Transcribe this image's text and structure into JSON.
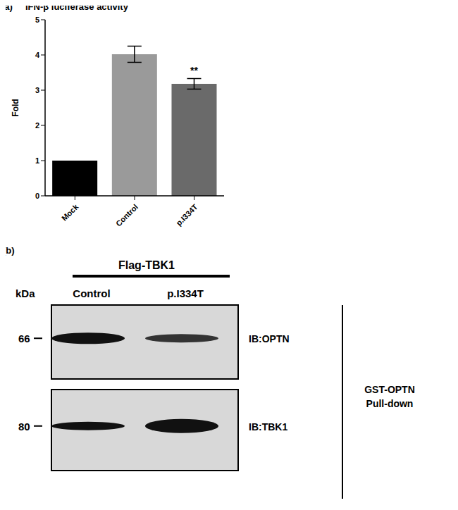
{
  "chart_data": {
    "type": "bar",
    "title": "IFN-β luciferase activity",
    "y_label": "Fold",
    "categories": [
      "Mock",
      "Control",
      "p.I334T"
    ],
    "values": [
      1,
      4.02,
      3.18
    ],
    "errors": [
      0,
      0.23,
      0.15
    ],
    "colors": [
      "#000000",
      "#9a9a9a",
      "#6a6a6a"
    ],
    "ylim": [
      0,
      5
    ],
    "yticks": [
      0,
      1,
      2,
      3,
      4,
      5
    ],
    "grid": false,
    "annotations": [
      {
        "category": "p.I334T",
        "text": "**"
      }
    ]
  },
  "figure": {
    "panel_labels": [
      "(a)",
      "(b)"
    ]
  },
  "blot": {
    "header": "Flag-TBK1",
    "size_unit": "kDa",
    "lanes": [
      "Control",
      "p.I334T"
    ],
    "rows": [
      {
        "marker": 66,
        "antibody": "IB:OPTN"
      },
      {
        "marker": 80,
        "antibody": "IB:TBK1"
      }
    ],
    "side_label": [
      "GST-OPTN",
      "Pull-down"
    ]
  }
}
